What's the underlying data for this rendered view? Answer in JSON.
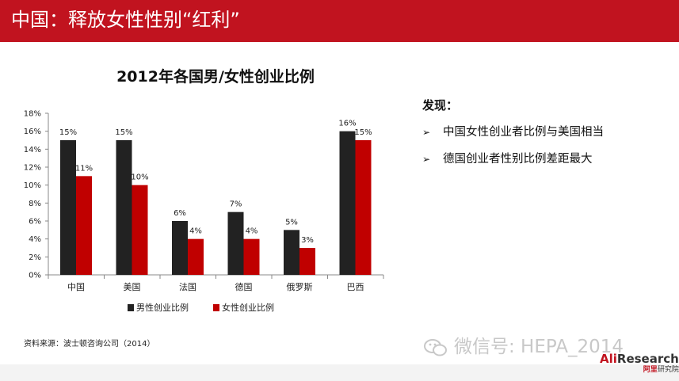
{
  "header": {
    "title": "中国：释放女性性别“红利”"
  },
  "findings": {
    "title": "发现：",
    "items": [
      "中国女性创业者比例与美国相当",
      "德国创业者性别比例差距最大"
    ]
  },
  "source": "资料来源：波士顿咨询公司（2014）",
  "watermark": {
    "text": "微信号: HEPA_2014"
  },
  "logo": {
    "top_ali": "Ali",
    "top_rest": "Research",
    "bottom_ali": "阿里",
    "bottom_rest": "研究院"
  },
  "colors": {
    "header": "#c1131f",
    "male": "#222222",
    "female": "#c00000"
  },
  "chart_data": {
    "type": "bar",
    "title": "2012年各国男/女性创业比例",
    "categories": [
      "中国",
      "美国",
      "法国",
      "德国",
      "俄罗斯",
      "巴西"
    ],
    "series": [
      {
        "name": "男性创业比例",
        "values": [
          15,
          15,
          6,
          7,
          5,
          16
        ],
        "labels": [
          "15%",
          "15%",
          "6%",
          "7%",
          "5%",
          "16%"
        ]
      },
      {
        "name": "女性创业比例",
        "values": [
          11,
          10,
          4,
          4,
          3,
          15
        ],
        "labels": [
          "11%",
          "10%",
          "4%",
          "4%",
          "3%",
          "15%"
        ]
      }
    ],
    "ylim": [
      0,
      18
    ],
    "yticks": [
      0,
      2,
      4,
      6,
      8,
      10,
      12,
      14,
      16,
      18
    ],
    "ytick_labels": [
      "0%",
      "2%",
      "4%",
      "6%",
      "8%",
      "10%",
      "12%",
      "14%",
      "16%",
      "18%"
    ],
    "legend": "bottom",
    "grid": false
  }
}
